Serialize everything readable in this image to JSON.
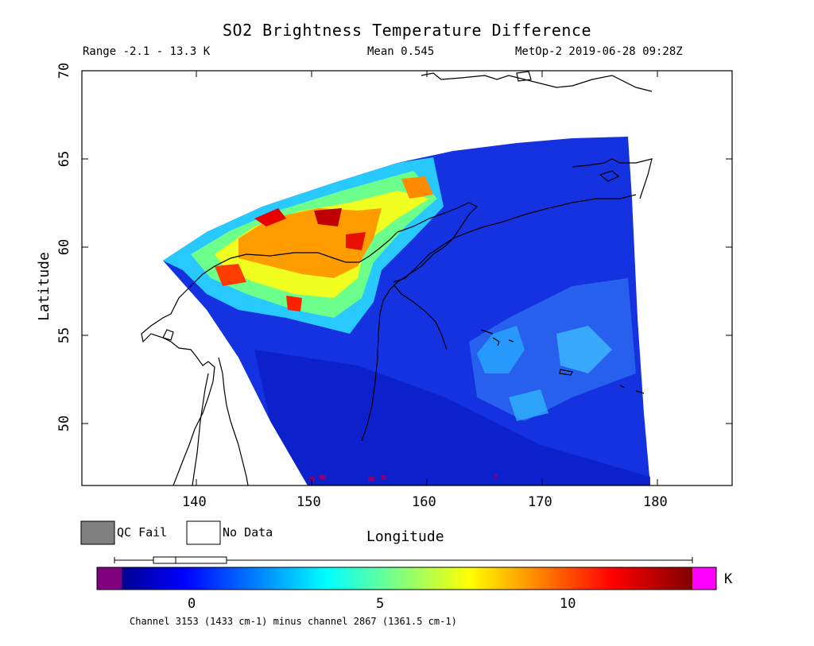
{
  "header": {
    "title": "SO2 Brightness Temperature Difference",
    "range_text": "Range -2.1 - 13.3 K",
    "mean_text": "Mean 0.545",
    "satellite_text": "MetOp-2 2019-06-28 09:28Z"
  },
  "map": {
    "xlabel": "Longitude",
    "ylabel": "Latitude",
    "xticks": [
      "140",
      "150",
      "160",
      "170",
      "180"
    ],
    "yticks": [
      "50",
      "55",
      "60",
      "65",
      "70"
    ],
    "lon_range": [
      130,
      186
    ],
    "lat_range": [
      46.5,
      70
    ]
  },
  "legend": {
    "qc_fail": "QC Fail",
    "no_data": "No Data",
    "qc_fail_color": "#808080",
    "no_data_color": "#ffffff"
  },
  "colorbar": {
    "unit": "K",
    "ticks": [
      "0",
      "5",
      "10"
    ],
    "range": [
      -2.1,
      13.3
    ],
    "underflow_color": "#800080",
    "overflow_color": "#ff00ff",
    "footnote": "Channel 3153 (1433 cm-1) minus channel 2867 (1361.5 cm-1)"
  }
}
